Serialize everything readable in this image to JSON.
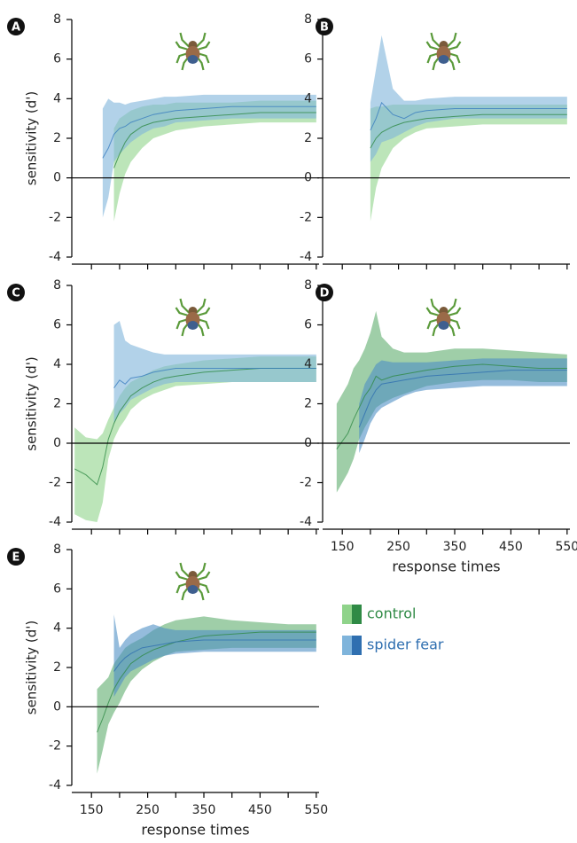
{
  "chart_data": [
    {
      "type": "line",
      "panel": "A",
      "ylabel": "sensitivity (d')",
      "show_xtick_labels": false,
      "xlim": [
        115,
        555
      ],
      "xticks": [
        150,
        250,
        350,
        450,
        550
      ],
      "xminor_ticks": [
        200,
        300,
        400,
        500
      ],
      "ylim": [
        -4,
        8
      ],
      "yticks": [
        -4,
        -2,
        0,
        2,
        4,
        6,
        8
      ],
      "x": [
        120,
        140,
        160,
        170,
        180,
        190,
        200,
        210,
        220,
        240,
        260,
        280,
        300,
        350,
        400,
        450,
        500,
        550
      ],
      "series": [
        {
          "color": "#2f8a45",
          "band_color": "#8fd38a",
          "values": [
            null,
            null,
            null,
            null,
            null,
            0.5,
            1.2,
            1.8,
            2.2,
            2.6,
            2.8,
            2.9,
            3.0,
            3.1,
            3.2,
            3.3,
            3.3,
            3.3
          ],
          "lower": [
            null,
            null,
            null,
            null,
            null,
            -2.2,
            -0.8,
            0.2,
            0.8,
            1.5,
            2.0,
            2.2,
            2.4,
            2.6,
            2.7,
            2.8,
            2.8,
            2.8
          ],
          "upper": [
            null,
            null,
            null,
            null,
            null,
            2.5,
            3.0,
            3.2,
            3.4,
            3.6,
            3.7,
            3.7,
            3.8,
            3.8,
            3.8,
            3.9,
            3.9,
            3.9
          ]
        },
        {
          "color": "#3a7dbf",
          "band_color": "#7fb4db",
          "values": [
            null,
            null,
            null,
            1.0,
            1.5,
            2.2,
            2.5,
            2.6,
            2.8,
            3.0,
            3.2,
            3.3,
            3.4,
            3.5,
            3.6,
            3.6,
            3.6,
            3.6
          ],
          "lower": [
            null,
            null,
            null,
            -2.0,
            -1.0,
            0.8,
            1.2,
            1.5,
            1.8,
            2.2,
            2.5,
            2.6,
            2.8,
            2.9,
            3.0,
            3.0,
            3.0,
            3.0
          ],
          "upper": [
            null,
            null,
            null,
            3.5,
            4.0,
            3.8,
            3.8,
            3.7,
            3.8,
            3.9,
            4.0,
            4.1,
            4.1,
            4.2,
            4.2,
            4.2,
            4.2,
            4.2
          ]
        }
      ]
    },
    {
      "type": "line",
      "panel": "B",
      "show_xtick_labels": false,
      "xlim": [
        115,
        555
      ],
      "xticks": [
        150,
        250,
        350,
        450,
        550
      ],
      "xminor_ticks": [
        200,
        300,
        400,
        500
      ],
      "ylim": [
        -4,
        8
      ],
      "yticks": [
        -4,
        -2,
        0,
        2,
        4,
        6,
        8
      ],
      "x": [
        120,
        140,
        160,
        170,
        180,
        190,
        200,
        210,
        220,
        240,
        260,
        280,
        300,
        350,
        400,
        450,
        500,
        550
      ],
      "series": [
        {
          "color": "#2f8a45",
          "band_color": "#8fd38a",
          "values": [
            null,
            null,
            null,
            null,
            null,
            null,
            1.5,
            2.0,
            2.3,
            2.6,
            2.8,
            2.9,
            3.0,
            3.1,
            3.2,
            3.2,
            3.2,
            3.2
          ],
          "lower": [
            null,
            null,
            null,
            null,
            null,
            null,
            -2.2,
            -0.5,
            0.5,
            1.5,
            2.0,
            2.3,
            2.5,
            2.6,
            2.7,
            2.7,
            2.7,
            2.7
          ],
          "upper": [
            null,
            null,
            null,
            null,
            null,
            null,
            3.5,
            3.6,
            3.6,
            3.7,
            3.7,
            3.7,
            3.7,
            3.7,
            3.7,
            3.7,
            3.7,
            3.7
          ]
        },
        {
          "color": "#3a7dbf",
          "band_color": "#7fb4db",
          "values": [
            null,
            null,
            null,
            null,
            null,
            null,
            2.4,
            3.0,
            3.8,
            3.2,
            3.0,
            3.3,
            3.4,
            3.5,
            3.5,
            3.5,
            3.5,
            3.5
          ],
          "lower": [
            null,
            null,
            null,
            null,
            null,
            null,
            0.8,
            1.2,
            1.8,
            2.0,
            2.3,
            2.6,
            2.8,
            3.0,
            3.0,
            3.0,
            3.0,
            3.0
          ],
          "upper": [
            null,
            null,
            null,
            null,
            null,
            null,
            3.8,
            5.5,
            7.2,
            4.5,
            3.9,
            3.9,
            4.0,
            4.1,
            4.1,
            4.1,
            4.1,
            4.1
          ]
        }
      ]
    },
    {
      "type": "line",
      "panel": "C",
      "ylabel": "sensitivity (d')",
      "show_xtick_labels": false,
      "xlim": [
        115,
        555
      ],
      "xticks": [
        150,
        250,
        350,
        450,
        550
      ],
      "xminor_ticks": [
        200,
        300,
        400,
        500
      ],
      "ylim": [
        -4,
        8
      ],
      "yticks": [
        -4,
        -2,
        0,
        2,
        4,
        6,
        8
      ],
      "x": [
        120,
        140,
        160,
        170,
        180,
        190,
        200,
        210,
        220,
        240,
        260,
        280,
        300,
        350,
        400,
        450,
        500,
        550
      ],
      "series": [
        {
          "color": "#2f8a45",
          "band_color": "#8fd38a",
          "values": [
            -1.3,
            -1.6,
            -2.1,
            -1.2,
            0.2,
            1.0,
            1.6,
            2.0,
            2.4,
            2.8,
            3.1,
            3.3,
            3.4,
            3.6,
            3.7,
            3.8,
            3.8,
            3.8
          ],
          "lower": [
            -3.6,
            -3.9,
            -4.0,
            -3.0,
            -0.8,
            0.2,
            0.8,
            1.2,
            1.7,
            2.2,
            2.5,
            2.7,
            2.9,
            3.0,
            3.1,
            3.1,
            3.1,
            3.1
          ],
          "upper": [
            0.8,
            0.3,
            0.2,
            0.5,
            1.2,
            1.8,
            2.4,
            2.8,
            3.1,
            3.4,
            3.7,
            3.9,
            4.0,
            4.2,
            4.3,
            4.4,
            4.4,
            4.4
          ]
        },
        {
          "color": "#3a7dbf",
          "band_color": "#7fb4db",
          "values": [
            null,
            null,
            null,
            null,
            null,
            2.8,
            3.2,
            3.0,
            3.3,
            3.4,
            3.6,
            3.7,
            3.8,
            3.8,
            3.8,
            3.8,
            3.8,
            3.8
          ],
          "lower": [
            null,
            null,
            null,
            null,
            null,
            1.0,
            1.5,
            1.8,
            2.2,
            2.5,
            2.8,
            3.0,
            3.1,
            3.1,
            3.1,
            3.1,
            3.1,
            3.1
          ],
          "upper": [
            null,
            null,
            null,
            null,
            null,
            6.0,
            6.2,
            5.2,
            5.0,
            4.8,
            4.6,
            4.5,
            4.5,
            4.5,
            4.5,
            4.5,
            4.5,
            4.5
          ]
        }
      ]
    },
    {
      "type": "line",
      "panel": "D",
      "xlabel": "response times",
      "show_xtick_labels": true,
      "xlim": [
        115,
        555
      ],
      "xticks": [
        150,
        250,
        350,
        450,
        550
      ],
      "xminor_ticks": [
        200,
        300,
        400,
        500
      ],
      "ylim": [
        -4,
        8
      ],
      "yticks": [
        -4,
        -2,
        0,
        2,
        4,
        6,
        8
      ],
      "x": [
        120,
        140,
        160,
        170,
        180,
        190,
        200,
        210,
        220,
        240,
        260,
        280,
        300,
        350,
        400,
        450,
        500,
        550
      ],
      "series": [
        {
          "color": "#2f8a45",
          "band_color": "#5fae6e",
          "values": [
            null,
            -0.3,
            0.5,
            1.2,
            1.8,
            2.4,
            2.8,
            3.4,
            3.2,
            3.4,
            3.5,
            3.6,
            3.7,
            3.9,
            4.0,
            3.9,
            3.8,
            3.8
          ],
          "lower": [
            null,
            -2.5,
            -1.5,
            -0.8,
            0.2,
            0.8,
            1.3,
            1.8,
            2.0,
            2.3,
            2.5,
            2.7,
            2.9,
            3.1,
            3.2,
            3.2,
            3.1,
            3.1
          ],
          "upper": [
            null,
            2.0,
            3.0,
            3.8,
            4.2,
            4.8,
            5.6,
            6.7,
            5.4,
            4.8,
            4.6,
            4.6,
            4.6,
            4.8,
            4.8,
            4.7,
            4.6,
            4.5
          ]
        },
        {
          "color": "#2f6fb0",
          "band_color": "#4f8fc4",
          "values": [
            null,
            null,
            null,
            null,
            0.8,
            1.5,
            2.2,
            2.7,
            3.0,
            3.1,
            3.2,
            3.3,
            3.4,
            3.5,
            3.6,
            3.7,
            3.7,
            3.7
          ],
          "lower": [
            null,
            null,
            null,
            null,
            -0.5,
            0.2,
            1.0,
            1.5,
            1.8,
            2.1,
            2.4,
            2.6,
            2.7,
            2.8,
            2.9,
            2.9,
            2.9,
            2.9
          ],
          "upper": [
            null,
            null,
            null,
            null,
            2.0,
            3.0,
            3.5,
            4.0,
            4.2,
            4.1,
            4.1,
            4.1,
            4.1,
            4.2,
            4.3,
            4.3,
            4.3,
            4.3
          ]
        }
      ]
    },
    {
      "type": "line",
      "panel": "E",
      "ylabel": "sensitivity (d')",
      "xlabel": "response times",
      "show_xtick_labels": true,
      "xlim": [
        115,
        555
      ],
      "xticks": [
        150,
        250,
        350,
        450,
        550
      ],
      "xminor_ticks": [
        200,
        300,
        400,
        500
      ],
      "ylim": [
        -4,
        8
      ],
      "yticks": [
        -4,
        -2,
        0,
        2,
        4,
        6,
        8
      ],
      "x": [
        120,
        140,
        160,
        170,
        180,
        190,
        200,
        210,
        220,
        240,
        260,
        280,
        300,
        350,
        400,
        450,
        500,
        550
      ],
      "series": [
        {
          "color": "#2f8a45",
          "band_color": "#5fae6e",
          "values": [
            null,
            null,
            -1.3,
            -0.6,
            0.2,
            0.9,
            1.4,
            1.8,
            2.2,
            2.6,
            2.9,
            3.1,
            3.3,
            3.6,
            3.7,
            3.8,
            3.8,
            3.8
          ],
          "lower": [
            null,
            null,
            -3.4,
            -2.2,
            -0.9,
            -0.3,
            0.2,
            0.8,
            1.3,
            1.9,
            2.3,
            2.6,
            2.8,
            2.9,
            3.0,
            3.0,
            3.0,
            3.0
          ],
          "upper": [
            null,
            null,
            0.9,
            1.2,
            1.5,
            2.2,
            2.6,
            3.0,
            3.2,
            3.5,
            3.9,
            4.2,
            4.4,
            4.6,
            4.4,
            4.3,
            4.2,
            4.2
          ]
        },
        {
          "color": "#2f6fb0",
          "band_color": "#4f8fc4",
          "values": [
            null,
            null,
            null,
            null,
            null,
            1.8,
            2.2,
            2.5,
            2.7,
            3.0,
            3.1,
            3.2,
            3.3,
            3.4,
            3.4,
            3.4,
            3.4,
            3.4
          ],
          "lower": [
            null,
            null,
            null,
            null,
            null,
            0.5,
            1.0,
            1.5,
            1.8,
            2.1,
            2.4,
            2.6,
            2.7,
            2.8,
            2.8,
            2.8,
            2.8,
            2.8
          ],
          "upper": [
            null,
            null,
            null,
            null,
            null,
            4.7,
            3.0,
            3.4,
            3.7,
            4.0,
            4.2,
            4.0,
            3.9,
            3.9,
            3.9,
            3.9,
            3.9,
            3.9
          ]
        }
      ]
    }
  ],
  "legend": [
    {
      "name": "control",
      "color": "#2f8a45",
      "light": "#8fd38a",
      "dark": "#2f8a45"
    },
    {
      "name": "spider fear",
      "color": "#2f6fb0",
      "light": "#7fb4db",
      "dark": "#2f6fb0"
    }
  ]
}
